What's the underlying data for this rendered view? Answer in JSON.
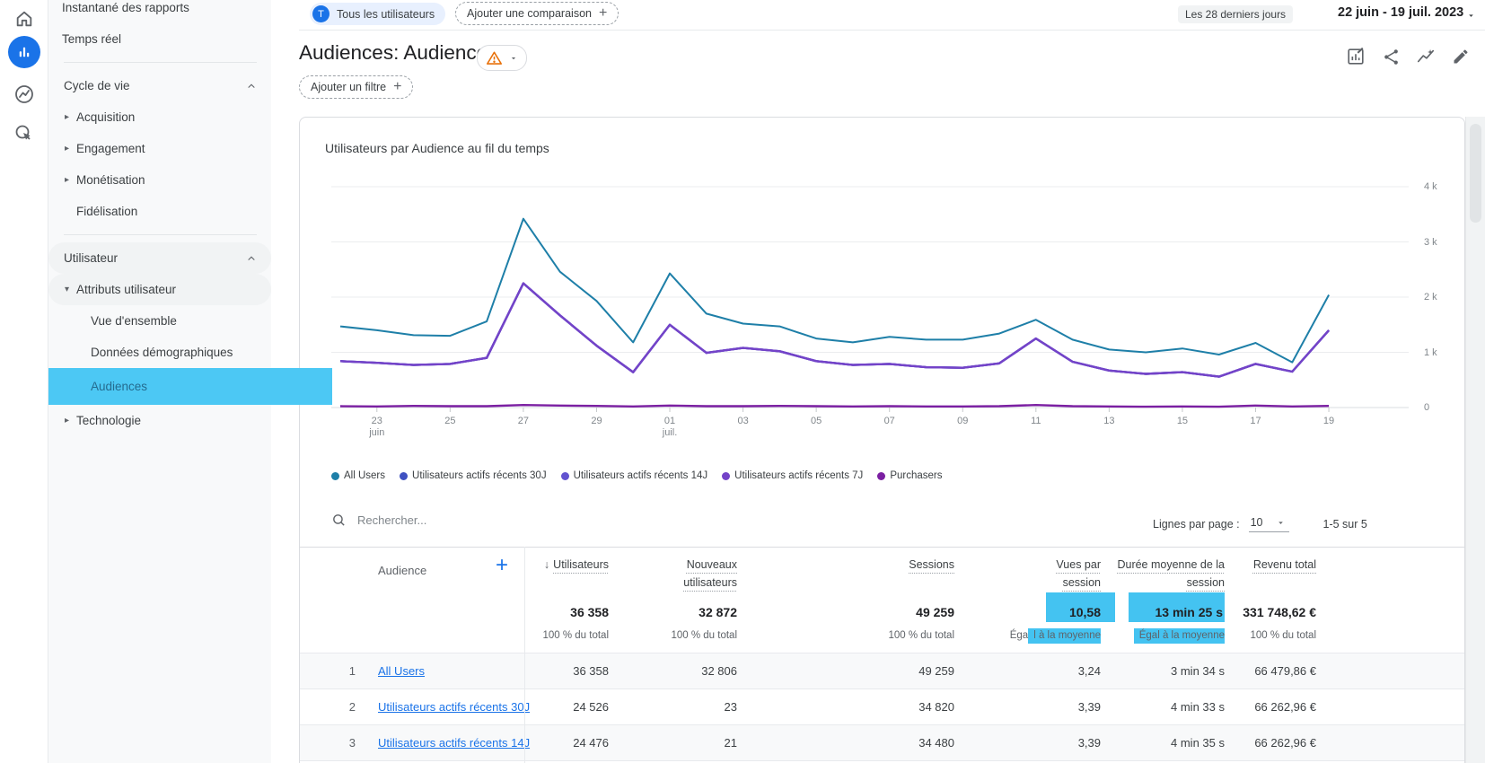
{
  "sidebar": {
    "rail": [
      {
        "name": "home-icon"
      },
      {
        "name": "reports-icon",
        "active": true
      },
      {
        "name": "explore-icon"
      },
      {
        "name": "advertising-icon"
      }
    ],
    "items": [
      {
        "type": "top",
        "label": "Instantané des rapports"
      },
      {
        "type": "top",
        "label": "Temps réel"
      },
      {
        "type": "divider"
      },
      {
        "type": "section",
        "label": "Cycle de vie",
        "chevron": "up"
      },
      {
        "type": "parent",
        "label": "Acquisition",
        "arrow": "right"
      },
      {
        "type": "parent",
        "label": "Engagement",
        "arrow": "right"
      },
      {
        "type": "parent",
        "label": "Monétisation",
        "arrow": "right"
      },
      {
        "type": "parent",
        "label": "Fidélisation",
        "arrow": "none"
      },
      {
        "type": "divider"
      },
      {
        "type": "section",
        "label": "Utilisateur",
        "chevron": "up",
        "pill": true
      },
      {
        "type": "parent",
        "label": "Attributs utilisateur",
        "arrow": "down",
        "pill": true
      },
      {
        "type": "child",
        "label": "Vue d'ensemble"
      },
      {
        "type": "child",
        "label": "Données démographiques"
      },
      {
        "type": "child",
        "label": "Audiences",
        "selected": true
      },
      {
        "type": "parent",
        "label": "Technologie",
        "arrow": "right"
      }
    ]
  },
  "topbar": {
    "audience_chip": {
      "avatar": "T",
      "label": "Tous les utilisateurs"
    },
    "add_comparison": "Ajouter une comparaison",
    "add_comparison_plus": "+",
    "date_preset": "Les 28 derniers jours",
    "date_range": "22 juin - 19 juil. 2023"
  },
  "page": {
    "title": "Audiences: Audience",
    "add_filter": "Ajouter un filtre",
    "add_filter_plus": "+"
  },
  "chart_data": {
    "type": "line",
    "title": "Utilisateurs par Audience au fil du temps",
    "x": [
      "22 juin",
      "23 juin",
      "24 juin",
      "25 juin",
      "26 juin",
      "27 juin",
      "28 juin",
      "29 juin",
      "30 juin",
      "01 juil.",
      "02 juil.",
      "03 juil.",
      "04 juil.",
      "05 juil.",
      "06 juil.",
      "07 juil.",
      "08 juil.",
      "09 juil.",
      "10 juil.",
      "11 juil.",
      "12 juil.",
      "13 juil.",
      "14 juil.",
      "15 juil.",
      "16 juil.",
      "17 juil.",
      "18 juil.",
      "19 juil."
    ],
    "xticks": [
      {
        "label": "23",
        "sub": "juin",
        "i": 1
      },
      {
        "label": "25",
        "i": 3
      },
      {
        "label": "27",
        "i": 5
      },
      {
        "label": "29",
        "i": 7
      },
      {
        "label": "01",
        "sub": "juil.",
        "i": 9
      },
      {
        "label": "03",
        "i": 11
      },
      {
        "label": "05",
        "i": 13
      },
      {
        "label": "07",
        "i": 15
      },
      {
        "label": "09",
        "i": 17
      },
      {
        "label": "11",
        "i": 19
      },
      {
        "label": "13",
        "i": 21
      },
      {
        "label": "15",
        "i": 23
      },
      {
        "label": "17",
        "i": 25
      },
      {
        "label": "19",
        "i": 27
      }
    ],
    "ylim": [
      0,
      4000
    ],
    "yticks": [
      {
        "v": 0,
        "label": "0"
      },
      {
        "v": 1000,
        "label": "1 k"
      },
      {
        "v": 2000,
        "label": "2 k"
      },
      {
        "v": 3000,
        "label": "3 k"
      },
      {
        "v": 4000,
        "label": "4 k"
      }
    ],
    "grid": true,
    "legend_position": "bottom",
    "series": [
      {
        "name": "All Users",
        "color": "#1e7fa8",
        "values": [
          1470,
          1400,
          1310,
          1300,
          1560,
          3420,
          2460,
          1930,
          1180,
          2430,
          1700,
          1520,
          1470,
          1250,
          1180,
          1280,
          1230,
          1230,
          1340,
          1590,
          1230,
          1050,
          1000,
          1070,
          960,
          1170,
          820,
          2040
        ]
      },
      {
        "name": "Utilisateurs actifs récents 30J",
        "color": "#3f51c1",
        "values": [
          840,
          810,
          770,
          790,
          900,
          2250,
          1670,
          1120,
          640,
          1500,
          990,
          1080,
          1020,
          840,
          770,
          790,
          730,
          720,
          800,
          1250,
          830,
          670,
          610,
          640,
          560,
          790,
          650,
          1400
        ]
      },
      {
        "name": "Utilisateurs actifs récents 14J",
        "color": "#6253d0",
        "values": [
          840,
          810,
          770,
          790,
          900,
          2250,
          1670,
          1120,
          640,
          1500,
          990,
          1080,
          1020,
          840,
          770,
          790,
          730,
          720,
          800,
          1250,
          830,
          670,
          610,
          640,
          560,
          790,
          650,
          1400
        ]
      },
      {
        "name": "Utilisateurs actifs récents 7J",
        "color": "#7443c8",
        "values": [
          840,
          810,
          770,
          790,
          900,
          2250,
          1670,
          1120,
          640,
          1500,
          990,
          1080,
          1020,
          840,
          770,
          790,
          730,
          720,
          800,
          1250,
          830,
          670,
          610,
          640,
          560,
          790,
          650,
          1400
        ]
      },
      {
        "name": "Purchasers",
        "color": "#7b1fa2",
        "values": [
          25,
          20,
          30,
          25,
          25,
          45,
          35,
          30,
          20,
          35,
          25,
          25,
          30,
          25,
          20,
          25,
          20,
          20,
          25,
          45,
          25,
          20,
          15,
          20,
          15,
          35,
          20,
          30
        ]
      }
    ]
  },
  "table": {
    "search_placeholder": "Rechercher...",
    "rows_per_page_label": "Lignes par page :",
    "rows_per_page": "10",
    "range": "1-5 sur 5",
    "audience_header": "Audience",
    "add_audience": "+",
    "columns": [
      {
        "label": "Utilisateurs",
        "sorted": true
      },
      {
        "label": "Nouveaux utilisateurs"
      },
      {
        "label": "Sessions"
      },
      {
        "label": "Vues par session"
      },
      {
        "label": "Durée moyenne de la session"
      },
      {
        "label": "Revenu total"
      }
    ],
    "summary": [
      {
        "value": "36 358",
        "sub": "100 % du total"
      },
      {
        "value": "32 872",
        "sub": "100 % du total"
      },
      {
        "value": "49 259",
        "sub": "100 % du total"
      },
      {
        "value": "10,58",
        "sub_plain": "Éga",
        "sub_hl": "l à la moyenne",
        "highlight": true
      },
      {
        "value": "13 min 25 s",
        "sub_plain": "",
        "sub_hl": "Égal à la moyenne",
        "highlight": true
      },
      {
        "value": "331 748,62 €",
        "sub": "100 % du total"
      }
    ],
    "rows": [
      {
        "num": "1",
        "name": "All Users",
        "cells": [
          "36 358",
          "32 806",
          "49 259",
          "3,24",
          "3 min 34 s",
          "66 479,86 €"
        ]
      },
      {
        "num": "2",
        "name": "Utilisateurs actifs récents 30J",
        "cells": [
          "24 526",
          "23",
          "34 820",
          "3,39",
          "4 min 33 s",
          "66 262,96 €"
        ]
      },
      {
        "num": "3",
        "name": "Utilisateurs actifs récents 14J",
        "cells": [
          "24 476",
          "21",
          "34 480",
          "3,39",
          "4 min 35 s",
          "66 262,96 €"
        ]
      }
    ]
  },
  "colors": {
    "accent": "#1a73e8",
    "nav_selected_bg": "#4cc8f4",
    "table_highlight": "#44c3f1",
    "warning": "#e8710a"
  }
}
